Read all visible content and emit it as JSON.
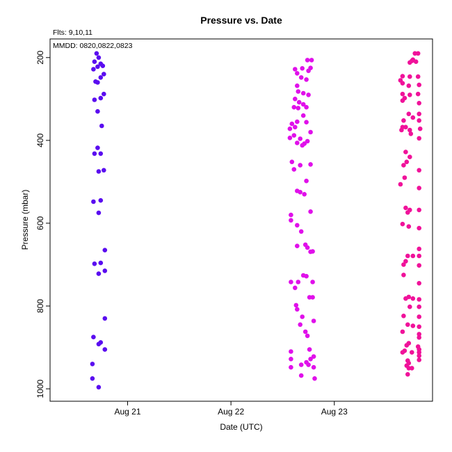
{
  "chart_data": {
    "type": "scatter",
    "title": "Pressure  vs. Date",
    "xlabel": "Date (UTC)",
    "ylabel": "Pressure (mbar)",
    "annotations": {
      "flts": "Flts: 9,10,11",
      "mmdd": "MMDD: 0820,0822,0823"
    },
    "x_ticks": [
      {
        "label": "Aug 21",
        "value": 21.0
      },
      {
        "label": "Aug 22",
        "value": 22.0
      },
      {
        "label": "Aug 23",
        "value": 23.0
      }
    ],
    "y_ticks": [
      200,
      400,
      600,
      800,
      1000
    ],
    "xlim": [
      20.25,
      23.95
    ],
    "ylim": [
      1030,
      155
    ],
    "y_reversed": true,
    "grid": false,
    "series": [
      {
        "color": "#5a0cf0",
        "points": [
          [
            20.7,
            190
          ],
          [
            20.72,
            200
          ],
          [
            20.68,
            210
          ],
          [
            20.74,
            215
          ],
          [
            20.71,
            222
          ],
          [
            20.76,
            220
          ],
          [
            20.67,
            228
          ],
          [
            20.77,
            240
          ],
          [
            20.74,
            248
          ],
          [
            20.69,
            258
          ],
          [
            20.71,
            260
          ],
          [
            20.77,
            288
          ],
          [
            20.74,
            298
          ],
          [
            20.68,
            302
          ],
          [
            20.71,
            330
          ],
          [
            20.75,
            365
          ],
          [
            20.71,
            418
          ],
          [
            20.68,
            432
          ],
          [
            20.74,
            432
          ],
          [
            20.77,
            472
          ],
          [
            20.72,
            475
          ],
          [
            20.74,
            545
          ],
          [
            20.67,
            548
          ],
          [
            20.72,
            575
          ],
          [
            20.78,
            665
          ],
          [
            20.68,
            698
          ],
          [
            20.74,
            696
          ],
          [
            20.78,
            715
          ],
          [
            20.72,
            722
          ],
          [
            20.78,
            830
          ],
          [
            20.67,
            875
          ],
          [
            20.74,
            888
          ],
          [
            20.72,
            892
          ],
          [
            20.78,
            905
          ],
          [
            20.66,
            940
          ],
          [
            20.66,
            975
          ],
          [
            20.72,
            996
          ]
        ]
      },
      {
        "color": "#e010ea",
        "points": [
          [
            22.78,
            206
          ],
          [
            22.74,
            206
          ],
          [
            22.69,
            226
          ],
          [
            22.62,
            228
          ],
          [
            22.64,
            238
          ],
          [
            22.77,
            225
          ],
          [
            22.75,
            232
          ],
          [
            22.68,
            248
          ],
          [
            22.73,
            253
          ],
          [
            22.64,
            268
          ],
          [
            22.65,
            282
          ],
          [
            22.7,
            286
          ],
          [
            22.75,
            290
          ],
          [
            22.62,
            300
          ],
          [
            22.66,
            308
          ],
          [
            22.7,
            313
          ],
          [
            22.61,
            320
          ],
          [
            22.65,
            322
          ],
          [
            22.73,
            320
          ],
          [
            22.7,
            340
          ],
          [
            22.64,
            355
          ],
          [
            22.73,
            356
          ],
          [
            22.59,
            360
          ],
          [
            22.62,
            368
          ],
          [
            22.57,
            372
          ],
          [
            22.77,
            380
          ],
          [
            22.61,
            388
          ],
          [
            22.57,
            394
          ],
          [
            22.67,
            396
          ],
          [
            22.71,
            408
          ],
          [
            22.64,
            406
          ],
          [
            22.69,
            412
          ],
          [
            22.74,
            402
          ],
          [
            22.59,
            452
          ],
          [
            22.67,
            460
          ],
          [
            22.77,
            458
          ],
          [
            22.61,
            470
          ],
          [
            22.73,
            498
          ],
          [
            22.67,
            525
          ],
          [
            22.71,
            530
          ],
          [
            22.64,
            522
          ],
          [
            22.77,
            572
          ],
          [
            22.58,
            580
          ],
          [
            22.58,
            593
          ],
          [
            22.64,
            605
          ],
          [
            22.68,
            620
          ],
          [
            22.64,
            655
          ],
          [
            22.72,
            652
          ],
          [
            22.74,
            659
          ],
          [
            22.79,
            668
          ],
          [
            22.77,
            669
          ],
          [
            22.7,
            726
          ],
          [
            22.73,
            728
          ],
          [
            22.58,
            742
          ],
          [
            22.65,
            742
          ],
          [
            22.79,
            742
          ],
          [
            22.62,
            756
          ],
          [
            22.76,
            779
          ],
          [
            22.79,
            779
          ],
          [
            22.63,
            798
          ],
          [
            22.64,
            808
          ],
          [
            22.69,
            826
          ],
          [
            22.67,
            845
          ],
          [
            22.72,
            862
          ],
          [
            22.74,
            872
          ],
          [
            22.8,
            836
          ],
          [
            22.58,
            910
          ],
          [
            22.76,
            905
          ],
          [
            22.8,
            922
          ],
          [
            22.77,
            928
          ],
          [
            22.73,
            936
          ],
          [
            22.58,
            928
          ],
          [
            22.68,
            942
          ],
          [
            22.75,
            942
          ],
          [
            22.8,
            948
          ],
          [
            22.58,
            948
          ],
          [
            22.68,
            968
          ],
          [
            22.81,
            975
          ]
        ]
      },
      {
        "color": "#f0129a",
        "points": [
          [
            23.78,
            190
          ],
          [
            23.81,
            190
          ],
          [
            23.76,
            205
          ],
          [
            23.75,
            208
          ],
          [
            23.79,
            210
          ],
          [
            23.73,
            212
          ],
          [
            23.66,
            245
          ],
          [
            23.73,
            246
          ],
          [
            23.81,
            246
          ],
          [
            23.64,
            255
          ],
          [
            23.66,
            262
          ],
          [
            23.72,
            268
          ],
          [
            23.82,
            266
          ],
          [
            23.66,
            288
          ],
          [
            23.81,
            288
          ],
          [
            23.73,
            290
          ],
          [
            23.68,
            298
          ],
          [
            23.66,
            304
          ],
          [
            23.82,
            310
          ],
          [
            23.72,
            336
          ],
          [
            23.82,
            336
          ],
          [
            23.76,
            345
          ],
          [
            23.67,
            352
          ],
          [
            23.82,
            352
          ],
          [
            23.66,
            368
          ],
          [
            23.65,
            375
          ],
          [
            23.69,
            368
          ],
          [
            23.73,
            375
          ],
          [
            23.83,
            372
          ],
          [
            23.74,
            384
          ],
          [
            23.82,
            395
          ],
          [
            23.69,
            428
          ],
          [
            23.73,
            440
          ],
          [
            23.7,
            452
          ],
          [
            23.67,
            460
          ],
          [
            23.82,
            472
          ],
          [
            23.68,
            490
          ],
          [
            23.64,
            506
          ],
          [
            23.82,
            515
          ],
          [
            23.69,
            563
          ],
          [
            23.73,
            568
          ],
          [
            23.71,
            574
          ],
          [
            23.82,
            568
          ],
          [
            23.66,
            602
          ],
          [
            23.72,
            608
          ],
          [
            23.82,
            612
          ],
          [
            23.82,
            662
          ],
          [
            23.71,
            679
          ],
          [
            23.76,
            679
          ],
          [
            23.82,
            679
          ],
          [
            23.67,
            700
          ],
          [
            23.69,
            692
          ],
          [
            23.82,
            702
          ],
          [
            23.67,
            725
          ],
          [
            23.82,
            745
          ],
          [
            23.72,
            778
          ],
          [
            23.69,
            782
          ],
          [
            23.76,
            782
          ],
          [
            23.82,
            784
          ],
          [
            23.82,
            802
          ],
          [
            23.73,
            802
          ],
          [
            23.82,
            826
          ],
          [
            23.67,
            824
          ],
          [
            23.82,
            850
          ],
          [
            23.71,
            845
          ],
          [
            23.76,
            848
          ],
          [
            23.66,
            862
          ],
          [
            23.82,
            868
          ],
          [
            23.82,
            876
          ],
          [
            23.7,
            895
          ],
          [
            23.72,
            890
          ],
          [
            23.81,
            898
          ],
          [
            23.82,
            905
          ],
          [
            23.68,
            908
          ],
          [
            23.66,
            912
          ],
          [
            23.75,
            912
          ],
          [
            23.82,
            912
          ],
          [
            23.82,
            920
          ],
          [
            23.82,
            930
          ],
          [
            23.71,
            932
          ],
          [
            23.72,
            938
          ],
          [
            23.7,
            944
          ],
          [
            23.72,
            950
          ],
          [
            23.75,
            950
          ],
          [
            23.71,
            965
          ]
        ]
      }
    ]
  }
}
